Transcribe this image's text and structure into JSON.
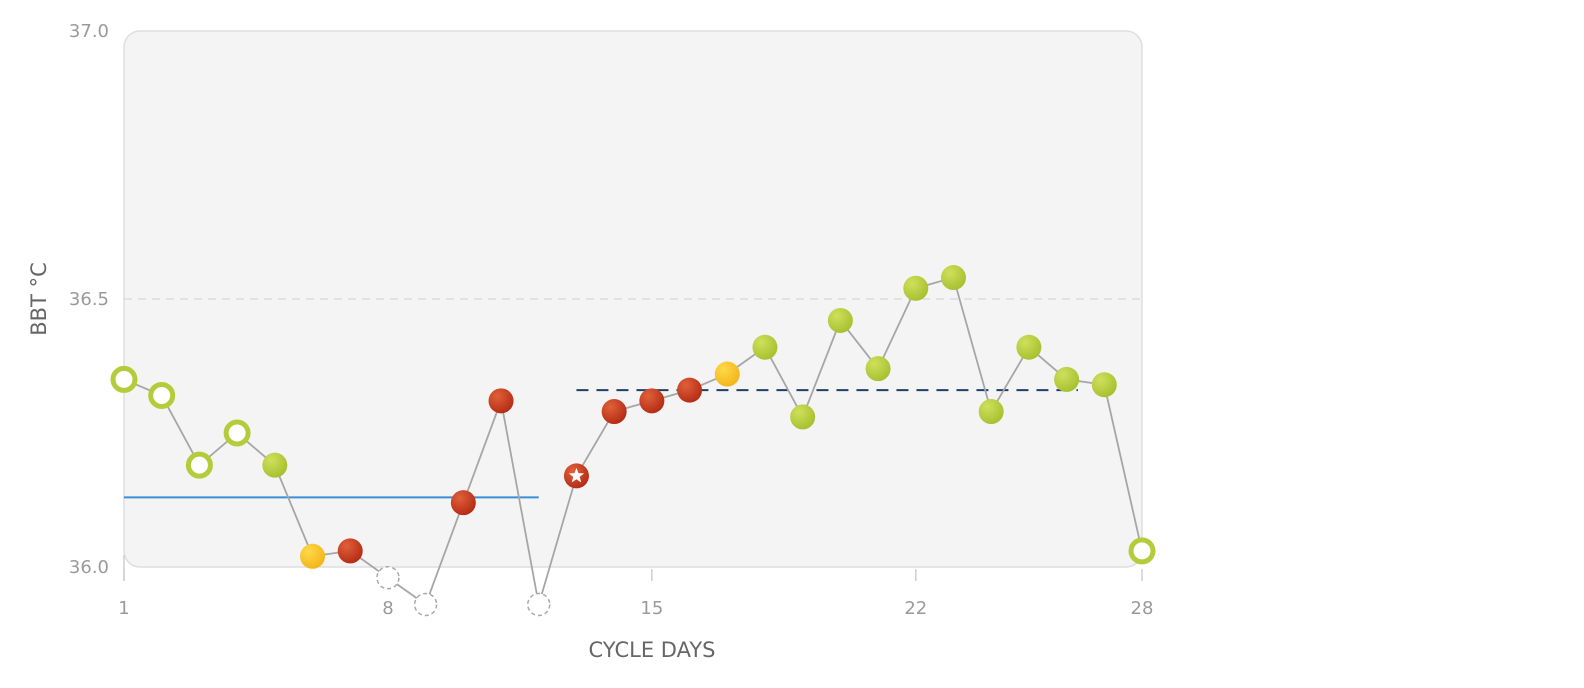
{
  "chart_data": {
    "type": "line",
    "ylabel": "BBT °C",
    "xlabel": "CYCLE DAYS",
    "ylim": [
      36.0,
      37.0
    ],
    "xlim": [
      1,
      28
    ],
    "y_ticks": [
      "36.0",
      "36.5",
      "37.0"
    ],
    "x_ticks": [
      "1",
      "8",
      "15",
      "22",
      "28"
    ],
    "grid": "dashed line at 36.5",
    "colors": {
      "menstruation": "#c53a20",
      "fertile": "#b5cc3a",
      "ovulation_predicted": "#f5c31c",
      "excluded": "#a9a9a9",
      "line": "#a6a6a6",
      "coverline_low": "#3a8fd8",
      "coverline_high": "#1f3f66"
    },
    "series": [
      {
        "points": [
          {
            "day": 1,
            "temp": 36.35,
            "marker": "ring-green"
          },
          {
            "day": 2,
            "temp": 36.32,
            "marker": "ring-green"
          },
          {
            "day": 3,
            "temp": 36.19,
            "marker": "ring-green"
          },
          {
            "day": 4,
            "temp": 36.25,
            "marker": "ring-green"
          },
          {
            "day": 5,
            "temp": 36.19,
            "marker": "green"
          },
          {
            "day": 6,
            "temp": 36.02,
            "marker": "yellow"
          },
          {
            "day": 7,
            "temp": 36.03,
            "marker": "red"
          },
          {
            "day": 8,
            "temp": 35.98,
            "marker": "excluded"
          },
          {
            "day": 9,
            "temp": 35.93,
            "marker": "excluded"
          },
          {
            "day": 10,
            "temp": 36.12,
            "marker": "red"
          },
          {
            "day": 11,
            "temp": 36.31,
            "marker": "red"
          },
          {
            "day": 12,
            "temp": 35.93,
            "marker": "excluded"
          },
          {
            "day": 13,
            "temp": 36.17,
            "marker": "star-red"
          },
          {
            "day": 14,
            "temp": 36.29,
            "marker": "red"
          },
          {
            "day": 15,
            "temp": 36.31,
            "marker": "red"
          },
          {
            "day": 16,
            "temp": 36.33,
            "marker": "red"
          },
          {
            "day": 17,
            "temp": 36.36,
            "marker": "yellow"
          },
          {
            "day": 18,
            "temp": 36.41,
            "marker": "green"
          },
          {
            "day": 19,
            "temp": 36.28,
            "marker": "green"
          },
          {
            "day": 20,
            "temp": 36.46,
            "marker": "green"
          },
          {
            "day": 21,
            "temp": 36.37,
            "marker": "green"
          },
          {
            "day": 22,
            "temp": 36.52,
            "marker": "green"
          },
          {
            "day": 23,
            "temp": 36.54,
            "marker": "green"
          },
          {
            "day": 24,
            "temp": 36.29,
            "marker": "green"
          },
          {
            "day": 25,
            "temp": 36.41,
            "marker": "green"
          },
          {
            "day": 26,
            "temp": 36.35,
            "marker": "green"
          },
          {
            "day": 27,
            "temp": 36.34,
            "marker": "green"
          },
          {
            "day": 28,
            "temp": 36.03,
            "marker": "ring-green"
          }
        ]
      }
    ],
    "coverlines": [
      {
        "style": "solid",
        "color": "#3a8fd8",
        "y": 36.13,
        "x_from": 1,
        "x_to": 12
      },
      {
        "style": "dashed",
        "color": "#1f3f66",
        "y": 36.33,
        "x_from": 13,
        "x_to": 26.3
      }
    ]
  }
}
